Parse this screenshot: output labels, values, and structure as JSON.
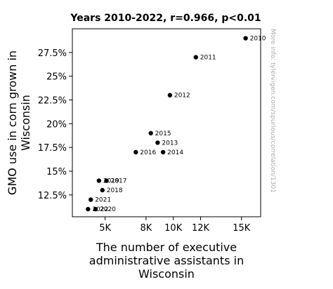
{
  "chart_data": {
    "type": "scatter",
    "title": "Years 2010-2022, r=0.966, p<0.01",
    "xlabel": [
      "The number of executive",
      "administrative assistants in",
      "Wisconsin"
    ],
    "ylabel": [
      "GMO use in corn grown in",
      "Wisconsin"
    ],
    "watermark": "More info: tylervigen.com/spurious/correlation/1301",
    "xlim": [
      2600,
      16400
    ],
    "ylim": [
      10.2,
      30.0
    ],
    "x_ticks": [
      {
        "value": 5000,
        "label": "5K"
      },
      {
        "value": 8000,
        "label": "8K"
      },
      {
        "value": 10000,
        "label": "10K"
      },
      {
        "value": 12000,
        "label": "12K"
      },
      {
        "value": 15000,
        "label": "15K"
      }
    ],
    "y_ticks": [
      {
        "value": 12.5,
        "label": "12.5%"
      },
      {
        "value": 15,
        "label": "15%"
      },
      {
        "value": 17.5,
        "label": "17.5%"
      },
      {
        "value": 20,
        "label": "20%"
      },
      {
        "value": 22.5,
        "label": "22.5%"
      },
      {
        "value": 25,
        "label": "25%"
      },
      {
        "value": 27.5,
        "label": "27.5%"
      }
    ],
    "points": [
      {
        "label": "2010",
        "x": 15300,
        "y": 29
      },
      {
        "label": "2011",
        "x": 11650,
        "y": 27
      },
      {
        "label": "2012",
        "x": 9750,
        "y": 23
      },
      {
        "label": "2013",
        "x": 8850,
        "y": 18
      },
      {
        "label": "2014",
        "x": 9250,
        "y": 17
      },
      {
        "label": "2015",
        "x": 8350,
        "y": 19
      },
      {
        "label": "2016",
        "x": 7250,
        "y": 17
      },
      {
        "label": "2017",
        "x": 5100,
        "y": 14
      },
      {
        "label": "2018",
        "x": 4800,
        "y": 13
      },
      {
        "label": "2019",
        "x": 4550,
        "y": 14
      },
      {
        "label": "2020",
        "x": 4300,
        "y": 11
      },
      {
        "label": "2021",
        "x": 3950,
        "y": 12
      },
      {
        "label": "2022",
        "x": 3750,
        "y": 11
      }
    ]
  }
}
